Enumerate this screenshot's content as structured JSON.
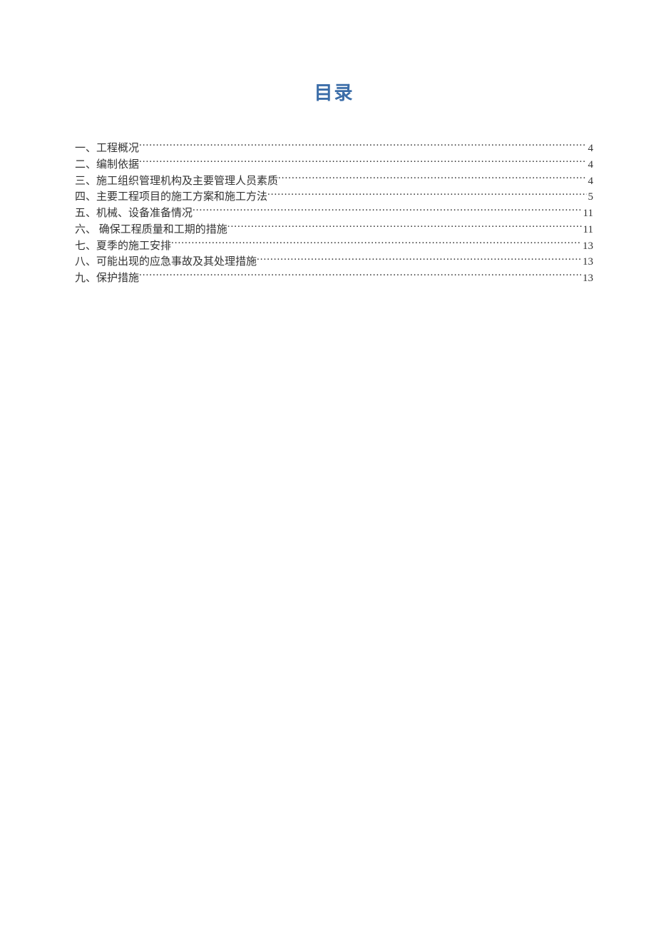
{
  "title": "目录",
  "title_color": "#3b6da8",
  "text_color": "#333333",
  "background_color": "#ffffff",
  "font_family": "SimSun",
  "title_fontsize": 26,
  "item_fontsize": 15,
  "toc_items": [
    {
      "label": "一、工程概况",
      "page": "4"
    },
    {
      "label": "二、编制依据",
      "page": "4"
    },
    {
      "label": "三、施工组织管理机构及主要管理人员素质",
      "page": "4"
    },
    {
      "label": "四、主要工程项目的施工方案和施工方法",
      "page": "5"
    },
    {
      "label": "五、机械、设备准备情况",
      "page": "11"
    },
    {
      "label": "六、 确保工程质量和工期的措施",
      "page": "11"
    },
    {
      "label": "七、夏季的施工安排",
      "page": "13"
    },
    {
      "label": "八、可能出现的应急事故及其处理措施",
      "page": "13"
    },
    {
      "label": "九、保护措施",
      "page": "13"
    }
  ]
}
